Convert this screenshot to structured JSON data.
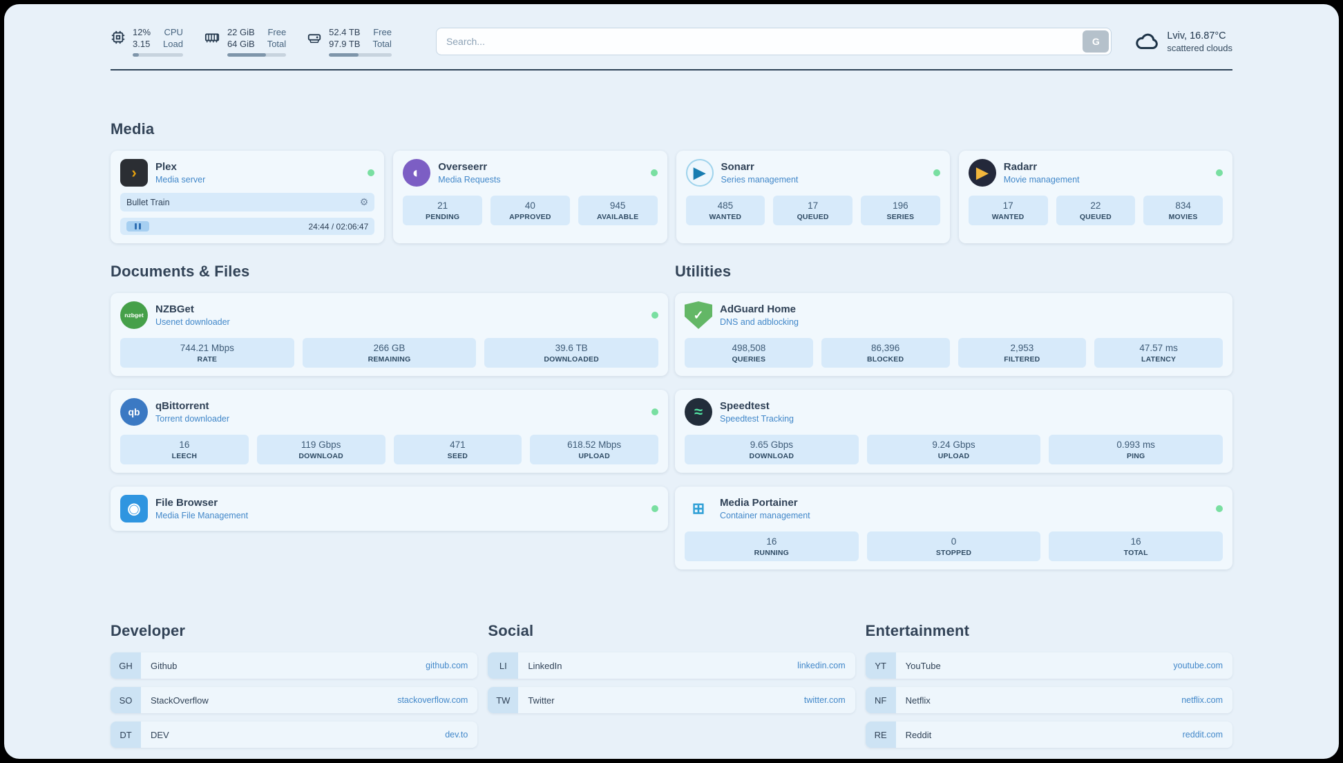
{
  "theme": {
    "page_bg": "#e8f1f9",
    "card_bg": "#f1f8fd",
    "stat_bg": "#d7eafa",
    "text_dark": "#2f4156",
    "accent_blue": "#4187c9",
    "status_green": "#79dfa1"
  },
  "topbar": {
    "resources": [
      {
        "key": "cpu",
        "icon": "cpu-icon",
        "values": [
          "12%",
          "3.15"
        ],
        "labels": [
          "CPU",
          "Load"
        ],
        "progress": 12
      },
      {
        "key": "memory",
        "icon": "memory-icon",
        "values": [
          "22 GiB",
          "64 GiB"
        ],
        "labels": [
          "Free",
          "Total"
        ],
        "progress": 66
      },
      {
        "key": "disk",
        "icon": "disk-icon",
        "values": [
          "52.4 TB",
          "97.9 TB"
        ],
        "labels": [
          "Free",
          "Total"
        ],
        "progress": 47
      }
    ],
    "search": {
      "placeholder": "Search...",
      "button_label": "G"
    },
    "weather": {
      "icon": "cloud-icon",
      "location": "Lviv, 16.87°C",
      "condition": "scattered clouds"
    }
  },
  "sections": {
    "media": {
      "title": "Media",
      "cards": [
        {
          "key": "plex",
          "name": "Plex",
          "subtitle": "Media server",
          "online": true,
          "icon": {
            "glyph": "›",
            "bg": "#2b2e33",
            "fg": "#e5a00d",
            "shape": "square"
          },
          "player": {
            "title": "Bullet Train",
            "time": "24:44 / 02:06:47"
          }
        },
        {
          "key": "overseerr",
          "name": "Overseerr",
          "subtitle": "Media Requests",
          "online": true,
          "icon": {
            "glyph": "◐",
            "bg": "#7c5ec4",
            "fg": "#ffffff",
            "shape": "circle"
          },
          "stats": [
            {
              "value": "21",
              "label": "PENDING"
            },
            {
              "value": "40",
              "label": "APPROVED"
            },
            {
              "value": "945",
              "label": "AVAILABLE"
            }
          ]
        },
        {
          "key": "sonarr",
          "name": "Sonarr",
          "subtitle": "Series management",
          "online": true,
          "icon": {
            "glyph": "▶",
            "bg": "#eef7fd",
            "fg": "#177cb0",
            "shape": "circle",
            "border": "#9fd3ec"
          },
          "stats": [
            {
              "value": "485",
              "label": "WANTED"
            },
            {
              "value": "17",
              "label": "QUEUED"
            },
            {
              "value": "196",
              "label": "SERIES"
            }
          ]
        },
        {
          "key": "radarr",
          "name": "Radarr",
          "subtitle": "Movie management",
          "online": true,
          "icon": {
            "glyph": "▶",
            "bg": "#23283a",
            "fg": "#f2b63c",
            "shape": "circle"
          },
          "stats": [
            {
              "value": "17",
              "label": "WANTED"
            },
            {
              "value": "22",
              "label": "QUEUED"
            },
            {
              "value": "834",
              "label": "MOVIES"
            }
          ]
        }
      ]
    },
    "documents": {
      "title": "Documents & Files",
      "cards": [
        {
          "key": "nzbget",
          "name": "NZBGet",
          "subtitle": "Usenet downloader",
          "online": true,
          "icon": {
            "text": "nzbget",
            "bg": "#45a049",
            "fg": "#ffffff",
            "shape": "circle"
          },
          "stats": [
            {
              "value": "744.21 Mbps",
              "label": "RATE"
            },
            {
              "value": "266 GB",
              "label": "REMAINING"
            },
            {
              "value": "39.6 TB",
              "label": "DOWNLOADED"
            }
          ]
        },
        {
          "key": "qbittorrent",
          "name": "qBittorrent",
          "subtitle": "Torrent downloader",
          "online": true,
          "icon": {
            "text": "qb",
            "bg": "#3b79c3",
            "fg": "#ffffff",
            "shape": "circle"
          },
          "stats": [
            {
              "value": "16",
              "label": "LEECH"
            },
            {
              "value": "119 Gbps",
              "label": "DOWNLOAD"
            },
            {
              "value": "471",
              "label": "SEED"
            },
            {
              "value": "618.52 Mbps",
              "label": "UPLOAD"
            }
          ]
        },
        {
          "key": "filebrowser",
          "name": "File Browser",
          "subtitle": "Media File Management",
          "online": true,
          "icon": {
            "glyph": "◉",
            "bg": "#2f95e0",
            "fg": "#ffffff",
            "shape": "square"
          }
        }
      ]
    },
    "utilities": {
      "title": "Utilities",
      "cards": [
        {
          "key": "adguard",
          "name": "AdGuard Home",
          "subtitle": "DNS and adblocking",
          "online": false,
          "icon": {
            "glyph": "✓",
            "bg": "#63b766",
            "fg": "#ffffff",
            "shape": "shield"
          },
          "stats": [
            {
              "value": "498,508",
              "label": "QUERIES"
            },
            {
              "value": "86,396",
              "label": "BLOCKED"
            },
            {
              "value": "2,953",
              "label": "FILTERED"
            },
            {
              "value": "47.57 ms",
              "label": "LATENCY"
            }
          ]
        },
        {
          "key": "speedtest",
          "name": "Speedtest",
          "subtitle": "Speedtest Tracking",
          "online": false,
          "icon": {
            "glyph": "≈",
            "bg": "#222d3a",
            "fg": "#53e6a4",
            "shape": "circle"
          },
          "stats": [
            {
              "value": "9.65 Gbps",
              "label": "DOWNLOAD"
            },
            {
              "value": "9.24 Gbps",
              "label": "UPLOAD"
            },
            {
              "value": "0.993 ms",
              "label": "PING"
            }
          ]
        },
        {
          "key": "portainer",
          "name": "Media Portainer",
          "subtitle": "Container management",
          "online": true,
          "icon": {
            "glyph": "⊞",
            "bg": "transparent",
            "fg": "#2e9fd6",
            "shape": "square"
          },
          "stats": [
            {
              "value": "16",
              "label": "RUNNING"
            },
            {
              "value": "0",
              "label": "STOPPED"
            },
            {
              "value": "16",
              "label": "TOTAL"
            }
          ]
        }
      ]
    }
  },
  "bookmarks": {
    "groups": [
      {
        "title": "Developer",
        "links": [
          {
            "abbr": "GH",
            "name": "Github",
            "href": "github.com"
          },
          {
            "abbr": "SO",
            "name": "StackOverflow",
            "href": "stackoverflow.com"
          },
          {
            "abbr": "DT",
            "name": "DEV",
            "href": "dev.to"
          }
        ]
      },
      {
        "title": "Social",
        "links": [
          {
            "abbr": "LI",
            "name": "LinkedIn",
            "href": "linkedin.com"
          },
          {
            "abbr": "TW",
            "name": "Twitter",
            "href": "twitter.com"
          }
        ]
      },
      {
        "title": "Entertainment",
        "links": [
          {
            "abbr": "YT",
            "name": "YouTube",
            "href": "youtube.com"
          },
          {
            "abbr": "NF",
            "name": "Netflix",
            "href": "netflix.com"
          },
          {
            "abbr": "RE",
            "name": "Reddit",
            "href": "reddit.com"
          }
        ]
      }
    ]
  }
}
